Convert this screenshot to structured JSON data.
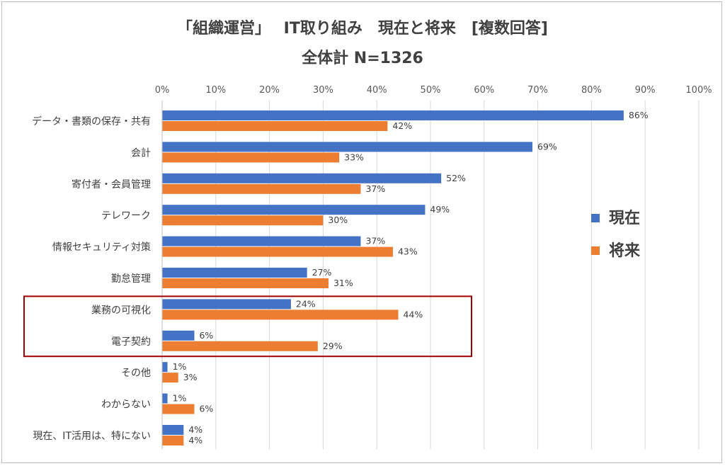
{
  "chart_data": {
    "type": "bar",
    "orientation": "horizontal",
    "title": "「組織運営」　 IT取り組み　現在と将来　[複数回答]",
    "subtitle": "全体計 N=1326",
    "categories": [
      "データ・書類の保存・共有",
      "会計",
      "寄付者・会員管理",
      "テレワーク",
      "情報セキュリティ対策",
      "勤怠管理",
      "業務の可視化",
      "電子契約",
      "その他",
      "わからない",
      "現在、IT活用は、特にない"
    ],
    "series": [
      {
        "name": "現在",
        "color": "#4472c4",
        "values": [
          86,
          69,
          52,
          49,
          37,
          27,
          24,
          6,
          1,
          1,
          4
        ]
      },
      {
        "name": "将来",
        "color": "#ed7d31",
        "values": [
          42,
          33,
          37,
          30,
          43,
          31,
          44,
          29,
          3,
          6,
          4
        ]
      }
    ],
    "xlim": [
      0,
      100
    ],
    "xticks": [
      "0%",
      "10%",
      "20%",
      "30%",
      "40%",
      "50%",
      "60%",
      "70%",
      "80%",
      "90%",
      "100%"
    ],
    "value_suffix": "%",
    "grid": true,
    "legend_position": "right",
    "highlight": {
      "categories": [
        "業務の可視化",
        "電子契約"
      ],
      "color": "#a00000"
    }
  }
}
